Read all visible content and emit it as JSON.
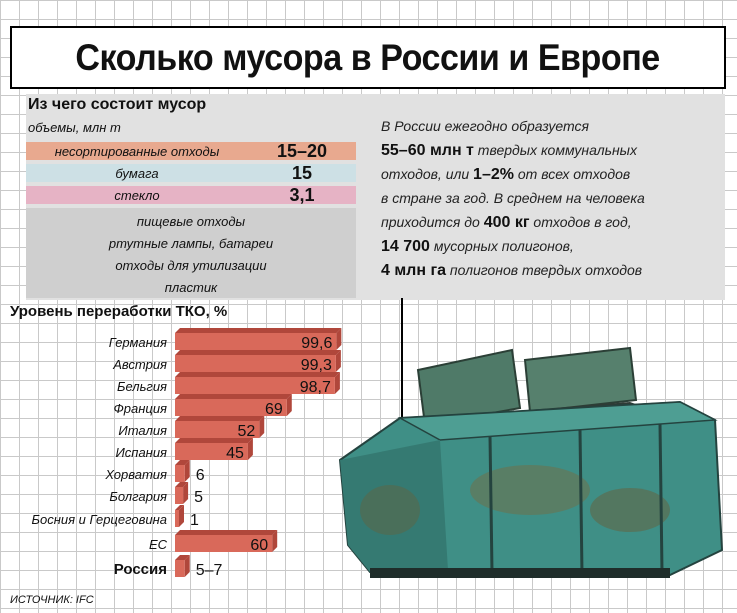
{
  "title": "Сколько мусора в России и Европе",
  "composition": {
    "heading": "Из чего состоит мусор",
    "unit_label": "объемы, млн т",
    "rows": [
      {
        "label": "несортированные отходы",
        "value": "15–20",
        "color": "#e8a98f"
      },
      {
        "label": "бумага",
        "value": "15",
        "color": "#cde0e5"
      },
      {
        "label": "стекло",
        "value": "3,1",
        "color": "#e6b3c5"
      }
    ],
    "other_items": [
      "пищевые отходы",
      "ртутные лампы, батареи",
      "отходы для утилизации",
      "пластик"
    ]
  },
  "russia_facts": {
    "line1": "В России ежегодно образуется",
    "line2_bold": "55–60 млн т",
    "line2_rest": " твердых коммунальных",
    "line3_pre": "отходов, или ",
    "line3_bold": "1–2%",
    "line3_rest": " от всех отходов",
    "line4": "в стране за год. В среднем на человека",
    "line5_pre": "приходится до ",
    "line5_bold": "400 кг",
    "line5_rest": " отходов в год,",
    "line6_bold": "14 700",
    "line6_rest": " мусорных полигонов,",
    "line7_bold": "4 млн га",
    "line7_rest": " полигонов твердых отходов"
  },
  "chart_data": {
    "type": "bar",
    "orientation": "horizontal",
    "title": "Уровень переработки ТКО, %",
    "categories": [
      "Германия",
      "Австрия",
      "Бельгия",
      "Франция",
      "Италия",
      "Испания",
      "Хорватия",
      "Болгария",
      "Босния и Герцеговина",
      "ЕС",
      "Россия"
    ],
    "values": [
      99.6,
      99.3,
      98.7,
      69,
      52,
      45,
      6,
      5,
      1,
      60,
      6
    ],
    "value_labels": [
      "99,6",
      "99,3",
      "98,7",
      "69",
      "52",
      "45",
      "6",
      "5",
      "1",
      "60",
      "5–7"
    ],
    "highlight": "Россия",
    "bar_color": "#d9695a",
    "bar_dark_color": "#b0473b",
    "xlim": [
      0,
      100
    ]
  },
  "source": "ИСТОЧНИК: IFC"
}
